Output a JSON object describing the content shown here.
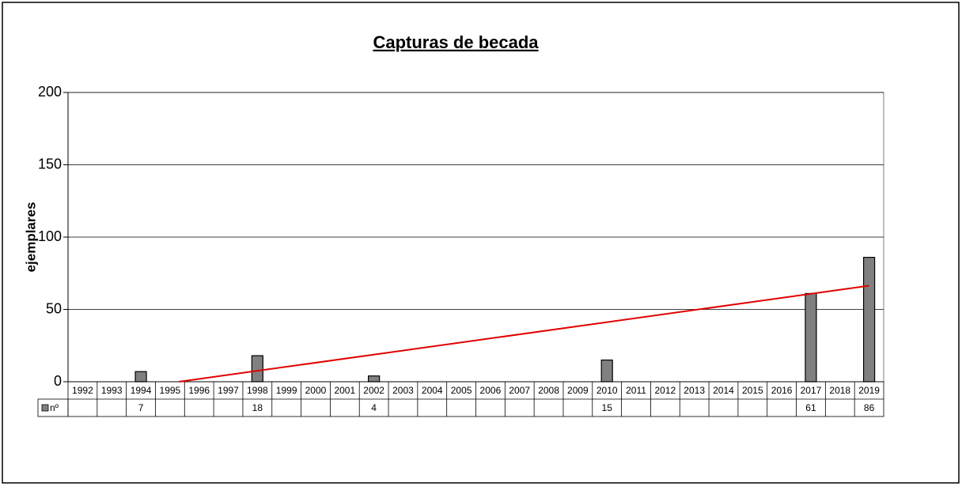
{
  "chart_data": {
    "type": "bar",
    "title": "Capturas de becada",
    "y_label": "ejemplares",
    "categories": [
      "1992",
      "1993",
      "1994",
      "1995",
      "1996",
      "1997",
      "1998",
      "1999",
      "2000",
      "2001",
      "2002",
      "2003",
      "2004",
      "2005",
      "2006",
      "2007",
      "2008",
      "2009",
      "2010",
      "2011",
      "2012",
      "2013",
      "2014",
      "2015",
      "2016",
      "2017",
      "2018",
      "2019"
    ],
    "series": [
      {
        "name": "nº",
        "color": "#808080",
        "values": [
          null,
          null,
          7,
          null,
          null,
          null,
          18,
          null,
          null,
          null,
          4,
          null,
          null,
          null,
          null,
          null,
          null,
          null,
          15,
          null,
          null,
          null,
          null,
          null,
          null,
          61,
          null,
          86
        ]
      }
    ],
    "ylim": [
      0,
      200
    ],
    "yticks": [
      0,
      50,
      100,
      150,
      200
    ],
    "grid": true,
    "trendline": "linear",
    "trendline_color": "#e00000",
    "data_table": true
  }
}
